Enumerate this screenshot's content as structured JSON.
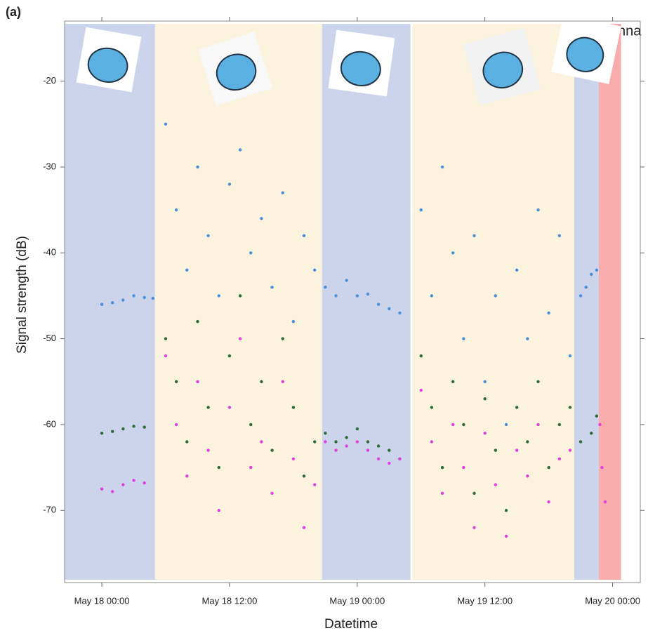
{
  "chart_data": {
    "type": "scatter",
    "title": "(a)",
    "xlabel": "Datetime",
    "ylabel": "Signal strength (dB)",
    "annotation": "nna",
    "xlim": [
      -3.5,
      50.6
    ],
    "ylim": [
      -78.4,
      -13
    ],
    "xticks": [
      {
        "value": 0,
        "label": "May 18 00:00"
      },
      {
        "value": 12,
        "label": "May 18 12:00"
      },
      {
        "value": 24,
        "label": "May 19 00:00"
      },
      {
        "value": 36,
        "label": "May 19 12:00"
      },
      {
        "value": 48,
        "label": "May 20 00:00"
      }
    ],
    "yticks": [
      -20,
      -30,
      -40,
      -50,
      -60,
      -70
    ],
    "periods": [
      {
        "start": -3.5,
        "end": 5,
        "color": "#c5cfe9"
      },
      {
        "start": 5,
        "end": 20.7,
        "color": "#fbf2d9"
      },
      {
        "start": 20.7,
        "end": 29.0,
        "color": "#c5cfe9"
      },
      {
        "start": 29.2,
        "end": 44.4,
        "color": "#fbf2d9"
      },
      {
        "start": 44.4,
        "end": 46.7,
        "color": "#c5cfe9"
      },
      {
        "start": 46.7,
        "end": 48.8,
        "color": "#f7a3a3"
      }
    ],
    "series": [
      {
        "color": "#4a8fd8",
        "x": [
          0,
          1,
          2,
          3,
          4,
          4.8,
          6,
          7,
          8,
          9,
          10,
          11,
          12,
          13,
          14,
          15,
          16,
          17,
          18,
          19,
          20,
          21,
          22,
          23,
          24,
          25,
          26,
          27,
          28,
          30,
          31,
          32,
          33,
          34,
          35,
          36,
          37,
          38,
          39,
          40,
          41,
          42,
          43,
          44,
          45,
          45.5,
          46,
          46.5
        ],
        "values": [
          -46,
          -45.8,
          -45.5,
          -45,
          -45.2,
          -45.3,
          -25,
          -35,
          -42,
          -30,
          -38,
          -45,
          -32,
          -28,
          -40,
          -36,
          -44,
          -33,
          -48,
          -38,
          -42,
          -44,
          -45,
          -43.2,
          -45,
          -44.8,
          -46,
          -46.5,
          -47,
          -35,
          -45,
          -30,
          -40,
          -50,
          -38,
          -55,
          -45,
          -60,
          -42,
          -50,
          -35,
          -47,
          -38,
          -52,
          -45,
          -44,
          -42.5,
          -42
        ]
      },
      {
        "color": "#2e6b3a",
        "x": [
          0,
          1,
          2,
          3,
          4,
          6,
          7,
          8,
          9,
          10,
          11,
          12,
          13,
          14,
          15,
          16,
          17,
          18,
          19,
          20,
          21,
          22,
          23,
          24,
          25,
          26,
          27,
          28,
          30,
          31,
          32,
          33,
          34,
          35,
          36,
          37,
          38,
          39,
          40,
          41,
          42,
          43,
          44,
          45,
          46,
          46.5
        ],
        "values": [
          -61,
          -60.8,
          -60.5,
          -60.2,
          -60.3,
          -50,
          -55,
          -62,
          -48,
          -58,
          -65,
          -52,
          -45,
          -60,
          -55,
          -63,
          -50,
          -58,
          -66,
          -62,
          -61,
          -62,
          -61.5,
          -60.5,
          -62,
          -62.5,
          -63,
          -64,
          -52,
          -58,
          -65,
          -55,
          -60,
          -68,
          -57,
          -63,
          -70,
          -58,
          -62,
          -55,
          -65,
          -60,
          -58,
          -62,
          -61,
          -59
        ]
      },
      {
        "color": "#e040e0",
        "x": [
          0,
          1,
          2,
          3,
          4,
          6,
          7,
          8,
          9,
          10,
          11,
          12,
          13,
          14,
          15,
          16,
          17,
          18,
          19,
          20,
          21,
          22,
          23,
          24,
          25,
          26,
          27,
          28,
          30,
          31,
          32,
          33,
          34,
          35,
          36,
          37,
          38,
          39,
          40,
          41,
          42,
          43,
          44,
          46.8,
          47,
          47.3
        ],
        "values": [
          -67.5,
          -67.8,
          -67,
          -66.5,
          -66.8,
          -52,
          -60,
          -66,
          -55,
          -63,
          -70,
          -58,
          -50,
          -65,
          -62,
          -68,
          -55,
          -64,
          -72,
          -67,
          -62,
          -63,
          -62.5,
          -62,
          -63,
          -64,
          -64.5,
          -64,
          -56,
          -62,
          -68,
          -60,
          -65,
          -72,
          -61,
          -67,
          -73,
          -63,
          -66,
          -60,
          -69,
          -64,
          -63,
          -60,
          -65,
          -69
        ]
      }
    ]
  }
}
